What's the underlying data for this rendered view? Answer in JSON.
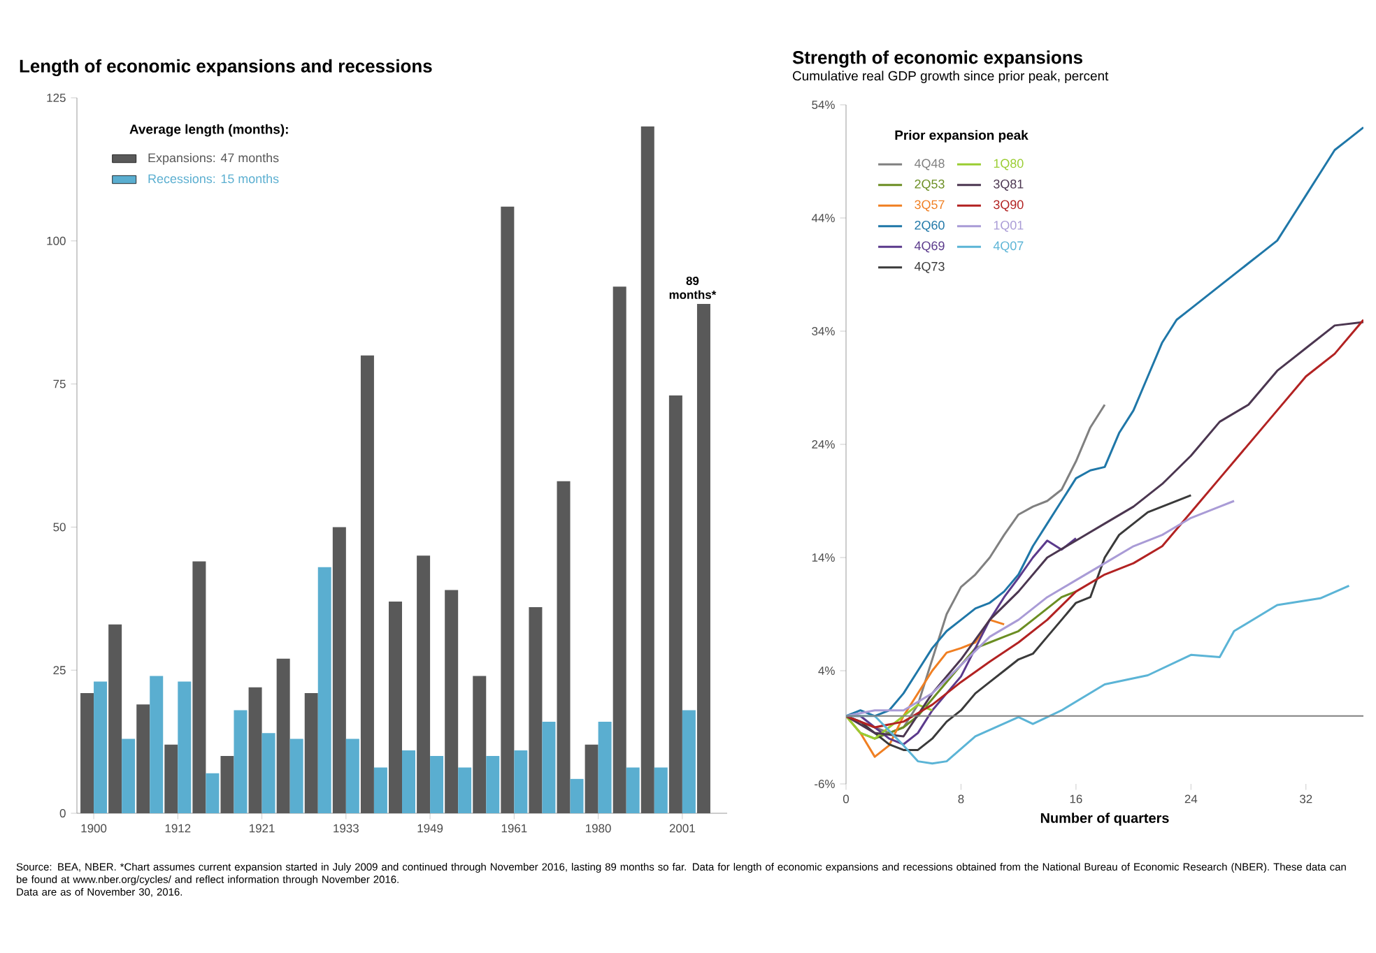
{
  "chart_data": [
    {
      "type": "bar",
      "title": "Length of economic expansions and recessions",
      "legend_title": "Average length (months):",
      "legend": "top left",
      "categories": [
        "1900",
        null,
        null,
        "1912",
        null,
        null,
        "1921",
        null,
        null,
        "1933",
        null,
        null,
        "1949",
        null,
        null,
        "1961",
        null,
        null,
        "1980",
        null,
        null,
        "2001",
        null
      ],
      "ylim": [
        0,
        125
      ],
      "yticks": [
        0,
        25,
        50,
        75,
        100,
        125
      ],
      "series": [
        {
          "name": "Expansions: 47 months",
          "color": "#595959",
          "values": [
            21,
            33,
            19,
            12,
            44,
            10,
            22,
            27,
            21,
            50,
            80,
            37,
            45,
            39,
            24,
            106,
            36,
            58,
            12,
            92,
            120,
            73,
            89
          ],
          "value_labels": [
            null,
            null,
            null,
            null,
            null,
            null,
            null,
            null,
            null,
            null,
            null,
            null,
            null,
            null,
            null,
            null,
            null,
            null,
            null,
            null,
            null,
            null,
            "89 months*"
          ]
        },
        {
          "name": "Recessions: 15 months",
          "color": "#5aaed0",
          "values": [
            23,
            13,
            24,
            23,
            7,
            18,
            14,
            13,
            43,
            13,
            8,
            11,
            10,
            8,
            10,
            11,
            16,
            6,
            16,
            8,
            8,
            18,
            null
          ]
        }
      ],
      "annotations": [
        "Source: BEA, NBER. *Chart assumes current expansion started in July 2009 and continued through November 2016, lasting 89 months so far. Data for length of economic expansions and recessions obtained from the National Bureau of Economic Research (NBER). These data can be found at www.nber.org/cycles/ and reflect information through November 2016.",
        "Data are as of November 30, 2016."
      ]
    },
    {
      "type": "line",
      "title": "Strength of economic expansions",
      "subtitle": "Cumulative real GDP growth since prior peak, percent",
      "xlabel": "Number of quarters",
      "legend_title": "Prior expansion peak",
      "legend": "top left",
      "marker": "none",
      "xlim": [
        0,
        36
      ],
      "xticks": [
        0,
        8,
        16,
        24,
        32
      ],
      "ylim": [
        -6,
        54
      ],
      "yticks": [
        {
          "value": -6,
          "label": "-6%"
        },
        {
          "value": 4,
          "label": "4%"
        },
        {
          "value": 14,
          "label": "14%"
        },
        {
          "value": 24,
          "label": "24%"
        },
        {
          "value": 34,
          "label": "34%"
        },
        {
          "value": 44,
          "label": "44%"
        },
        {
          "value": 54,
          "label": "54%"
        }
      ],
      "ref_lines": [
        {
          "axis": "y",
          "value": 0,
          "color": "#808080"
        }
      ],
      "series": [
        {
          "name": "4Q48",
          "color": "#808080",
          "x": [
            0,
            1,
            2,
            3,
            4,
            5,
            6,
            7,
            8,
            9,
            10,
            11,
            12,
            13,
            14,
            15,
            16,
            17,
            18
          ],
          "values": [
            0,
            -0.5,
            -1,
            -1.5,
            -1,
            1,
            5,
            9,
            11.4,
            12.5,
            14,
            16,
            17.8,
            18.5,
            19,
            20,
            22.5,
            25.5,
            27.5
          ]
        },
        {
          "name": "2Q53",
          "color": "#6b8e23",
          "x": [
            0,
            1,
            2,
            3,
            4,
            5,
            6,
            7,
            8,
            9,
            10,
            11,
            12,
            13,
            14,
            15,
            16
          ],
          "values": [
            0,
            -1.5,
            -2,
            -1.5,
            -1,
            0,
            1.5,
            3,
            4.5,
            6,
            6.5,
            7,
            7.5,
            8.5,
            9.5,
            10.5,
            11
          ]
        },
        {
          "name": "3Q57",
          "color": "#f07f22",
          "x": [
            0,
            1,
            2,
            3,
            4,
            5,
            6,
            7,
            8,
            9,
            10,
            11
          ],
          "values": [
            0,
            -1.5,
            -3.6,
            -2.6,
            0,
            2,
            4,
            5.6,
            6,
            6.5,
            8.5,
            8.1
          ]
        },
        {
          "name": "2Q60",
          "color": "#1f77a8",
          "x": [
            0,
            1,
            2,
            3,
            4,
            5,
            6,
            7,
            8,
            9,
            10,
            11,
            12,
            13,
            14,
            15,
            16,
            17,
            18,
            19,
            20,
            21,
            22,
            23,
            24,
            25,
            26,
            27,
            28,
            29,
            30,
            31,
            32,
            33,
            34,
            35,
            36
          ],
          "values": [
            0,
            0.5,
            0,
            0.5,
            2,
            4,
            6,
            7.5,
            8.5,
            9.5,
            10,
            11,
            12.5,
            15,
            17,
            19,
            21,
            21.7,
            22,
            25,
            27,
            30,
            33,
            35,
            36,
            37,
            38,
            39,
            40,
            41,
            42,
            44,
            46,
            48,
            50,
            51,
            52
          ]
        },
        {
          "name": "4Q69",
          "color": "#5b3a8c",
          "x": [
            0,
            1,
            2,
            3,
            4,
            5,
            6,
            7,
            8,
            9,
            10,
            11,
            12,
            13,
            14,
            15,
            16
          ],
          "values": [
            0,
            0,
            -1,
            -2,
            -2.5,
            -1.5,
            0.5,
            2,
            3.5,
            6,
            8.5,
            10.5,
            12.2,
            14,
            15.5,
            14.7,
            15.7
          ]
        },
        {
          "name": "4Q73",
          "color": "#3a3a3a",
          "x": [
            0,
            1,
            2,
            3,
            4,
            5,
            6,
            7,
            8,
            9,
            10,
            11,
            12,
            13,
            14,
            15,
            16,
            17,
            18,
            19,
            20,
            21,
            22,
            23,
            24
          ],
          "values": [
            0,
            -0.5,
            -1.5,
            -2.5,
            -3,
            -3,
            -2,
            -0.5,
            0.5,
            2,
            3,
            4,
            5,
            5.5,
            7,
            8.5,
            10,
            10.5,
            14,
            16,
            17,
            18,
            18.5,
            19,
            19.5
          ]
        },
        {
          "name": "1Q80",
          "color": "#9acd32",
          "x": [
            0,
            1,
            2,
            3,
            4,
            5,
            6
          ],
          "values": [
            0,
            -1.5,
            -2,
            -1,
            0,
            1,
            0.5
          ]
        },
        {
          "name": "3Q81",
          "color": "#4b3650",
          "x": [
            0,
            2,
            4,
            6,
            8,
            10,
            12,
            14,
            16,
            18,
            20,
            22,
            24,
            26,
            28,
            30,
            32,
            34,
            36
          ],
          "values": [
            0,
            -1.5,
            -1.8,
            2,
            5,
            8.5,
            11,
            14,
            15.5,
            17,
            18.5,
            20.5,
            23,
            26,
            27.5,
            30.5,
            32.5,
            34.5,
            34.8
          ]
        },
        {
          "name": "3Q90",
          "color": "#b22222",
          "x": [
            0,
            2,
            4,
            6,
            8,
            10,
            12,
            14,
            16,
            18,
            20,
            22,
            24,
            26,
            28,
            30,
            32,
            34,
            36
          ],
          "values": [
            0,
            -1,
            -0.5,
            1,
            3,
            4.8,
            6.5,
            8.5,
            11,
            12.5,
            13.5,
            15,
            18,
            21,
            24,
            27,
            30,
            32,
            35
          ]
        },
        {
          "name": "1Q01",
          "color": "#a99bd6",
          "x": [
            0,
            2,
            4,
            6,
            8,
            10,
            12,
            14,
            16,
            18,
            20,
            22,
            24,
            26,
            27
          ],
          "values": [
            0,
            0.5,
            0.5,
            2,
            4.5,
            7,
            8.5,
            10.5,
            12,
            13.5,
            15,
            16,
            17.5,
            18.5,
            19
          ]
        },
        {
          "name": "4Q07",
          "color": "#5bb4d6",
          "x": [
            0,
            2,
            4,
            5,
            6,
            7,
            9,
            12,
            13,
            15,
            18,
            21,
            24,
            26,
            27,
            30,
            33,
            35
          ],
          "values": [
            0,
            0,
            -2.6,
            -4,
            -4.2,
            -4,
            -1.8,
            -0.1,
            -0.7,
            0.5,
            2.8,
            3.6,
            5.4,
            5.2,
            7.5,
            9.8,
            10.4,
            11.5
          ]
        }
      ]
    }
  ]
}
